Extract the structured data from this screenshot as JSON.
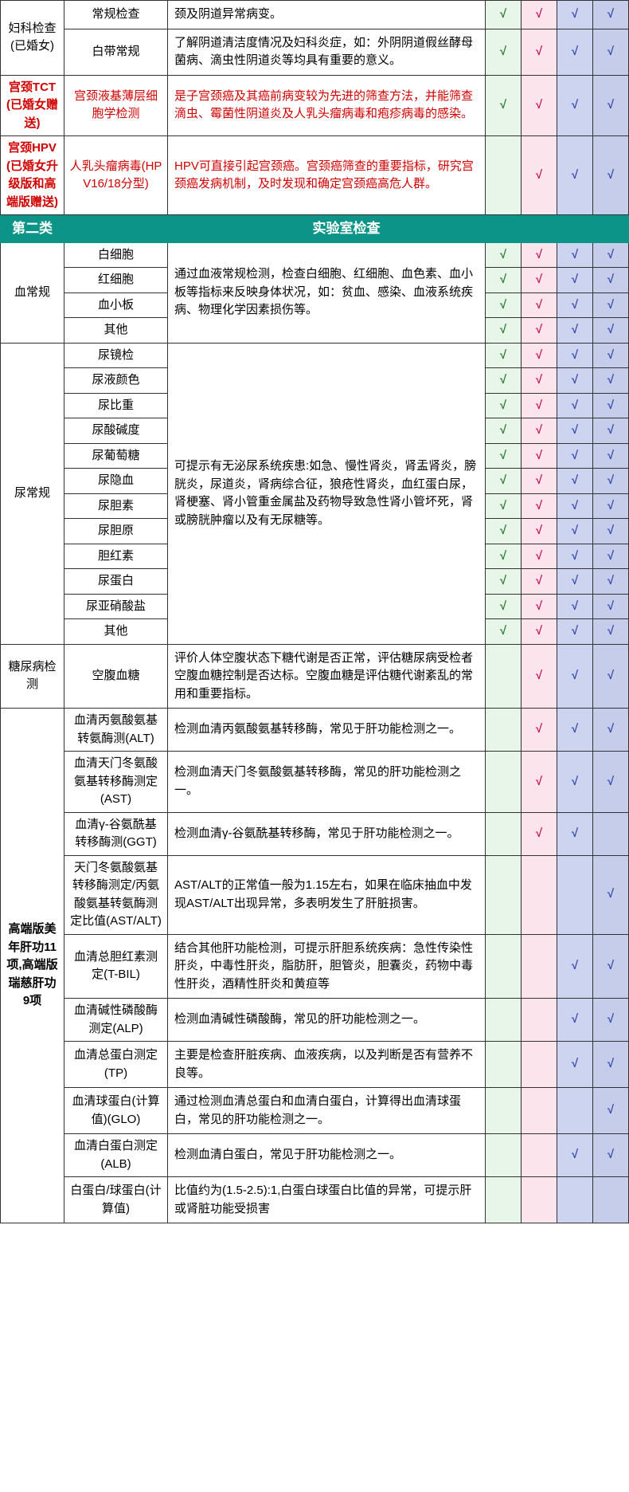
{
  "check": "√",
  "colors": {
    "section_bg": "#0d9488",
    "section_fg": "#ffffff",
    "red_text": "#d00000",
    "chk_green_bg": "#e8f5e9",
    "chk_green_fg": "#2e7d32",
    "chk_pink_bg": "#fce4ec",
    "chk_pink_fg": "#c2185b",
    "chk_purple1_bg": "#ccd4ef",
    "chk_purple2_bg": "#c5cdea",
    "chk_purple_fg": "#3949ab",
    "border": "#333333"
  },
  "section2_title_l": "第二类",
  "section2_title_r": "实验室检查",
  "rows": {
    "gyn": {
      "cat": "妇科检查(已婚女)",
      "r1_item": "常规检查",
      "r1_desc": "颈及阴道异常病变。",
      "r2_item": "白带常规",
      "r2_desc": "了解阴道清洁度情况及妇科炎症，如：外阴阴道假丝酵母菌病、滴虫性阴道炎等均具有重要的意义。"
    },
    "tct": {
      "cat": "宫颈TCT(已婚女赠送)",
      "item": "宫颈液基薄层细胞学检测",
      "desc": "是子宫颈癌及其癌前病变较为先进的筛查方法，并能筛查滴虫、霉菌性阴道炎及人乳头瘤病毒和疱疹病毒的感染。"
    },
    "hpv": {
      "cat": "宫颈HPV(已婚女升级版和高端版赠送)",
      "item": "人乳头瘤病毒(HPV16/18分型)",
      "desc": "HPV可直接引起宫颈癌。宫颈癌筛查的重要指标，研究宫颈癌发病机制，及时发现和确定宫颈癌高危人群。"
    },
    "blood": {
      "cat": "血常规",
      "i1": "白细胞",
      "i2": "红细胞",
      "i3": "血小板",
      "i4": "其他",
      "desc": "通过血液常规检测，检查白细胞、红细胞、血色素、血小板等指标来反映身体状况，如：贫血、感染、血液系统疾病、物理化学因素损伤等。"
    },
    "urine": {
      "cat": "尿常规",
      "i1": "尿镜检",
      "i2": "尿液颜色",
      "i3": "尿比重",
      "i4": "尿酸碱度",
      "i5": "尿葡萄糖",
      "i6": "尿隐血",
      "i7": "尿胆素",
      "i8": "尿胆原",
      "i9": "胆红素",
      "i10": "尿蛋白",
      "i11": "尿亚硝酸盐",
      "i12": "其他",
      "desc": "可提示有无泌尿系统疾患:如急、慢性肾炎，肾盂肾炎，膀胱炎，尿道炎，肾病综合征，狼疮性肾炎，血红蛋白尿，肾梗塞、肾小管重金属盐及药物导致急性肾小管坏死，肾或膀胱肿瘤以及有无尿糖等。"
    },
    "diab": {
      "cat": "糖尿病检测",
      "item": "空腹血糖",
      "desc": "评价人体空腹状态下糖代谢是否正常，评估糖尿病受检者空腹血糖控制是否达标。空腹血糖是评估糖代谢紊乱的常用和重要指标。"
    },
    "liver": {
      "cat": "高端版美年肝功11项,高端版瑞慈肝功9项",
      "r1_item": "血清丙氨酸氨基转氨酶测(ALT)",
      "r1_desc": "检测血清丙氨酸氨基转移酶，常见于肝功能检测之一。",
      "r2_item": "血清天门冬氨酸氨基转移酶测定(AST)",
      "r2_desc": "检测血清天门冬氨酸氨基转移酶，常见的肝功能检测之一。",
      "r3_item": "血清γ-谷氨酰基转移酶测(GGT)",
      "r3_desc": "检测血清γ-谷氨酰基转移酶，常见于肝功能检测之一。",
      "r4_item": "天门冬氨酸氨基转移酶测定/丙氨酸氨基转氨酶测定比值(AST/ALT)",
      "r4_desc": "AST/ALT的正常值一般为1.15左右，如果在临床抽血中发现AST/ALT出现异常，多表明发生了肝脏损害。",
      "r5_item": "血清总胆红素测定(T-BIL)",
      "r5_desc": "结合其他肝功能检测，可提示肝胆系统疾病：急性传染性肝炎，中毒性肝炎，脂肪肝，胆管炎，胆囊炎，药物中毒性肝炎，酒精性肝炎和黄疸等",
      "r6_item": "血清碱性磷酸酶测定(ALP)",
      "r6_desc": "检测血清碱性磷酸酶，常见的肝功能检测之一。",
      "r7_item": "血清总蛋白测定(TP)",
      "r7_desc": "主要是检查肝脏疾病、血液疾病，以及判断是否有营养不良等。",
      "r8_item": "血清球蛋白(计算值)(GLO)",
      "r8_desc": "通过检测血清总蛋白和血清白蛋白，计算得出血清球蛋白，常见的肝功能检测之一。",
      "r9_item": "血清白蛋白测定(ALB)",
      "r9_desc": "检测血清白蛋白，常见于肝功能检测之一。",
      "r10_item": "白蛋白/球蛋白(计算值)",
      "r10_desc": "比值约为(1.5-2.5):1,白蛋白球蛋白比值的异常，可提示肝或肾脏功能受损害"
    }
  }
}
